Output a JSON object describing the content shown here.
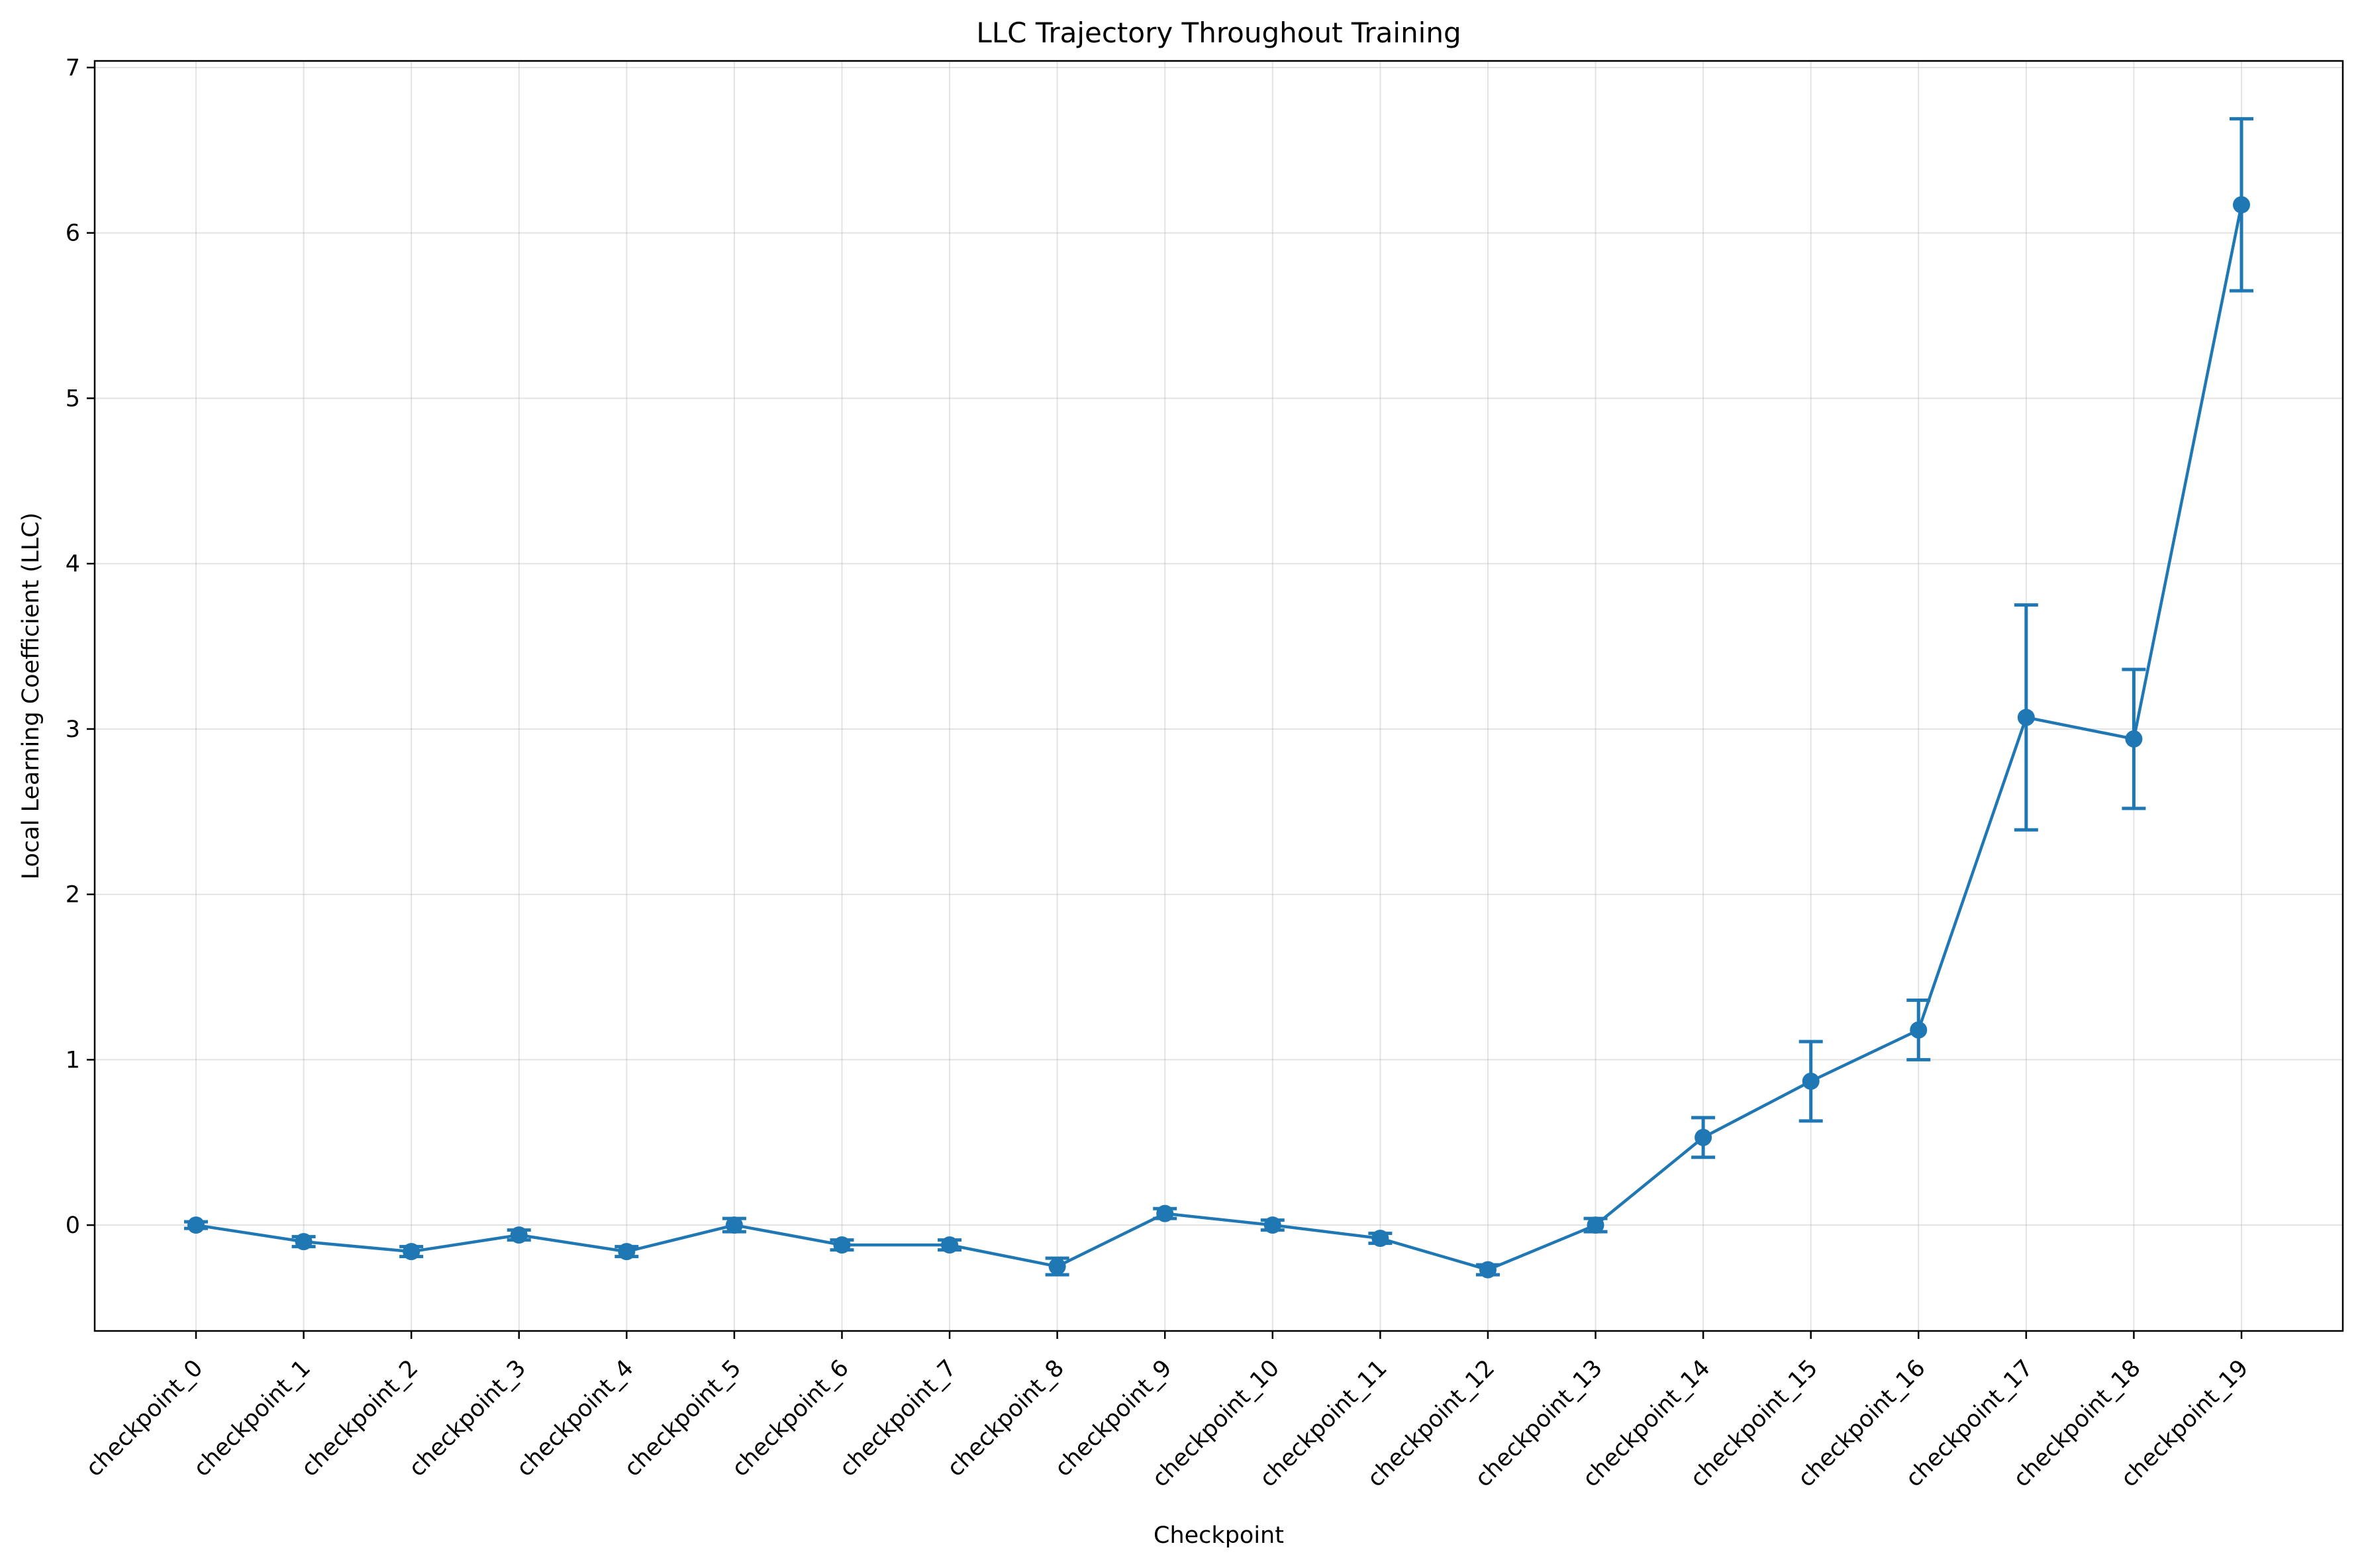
{
  "chart_data": {
    "type": "line",
    "title": "LLC Trajectory Throughout Training",
    "xlabel": "Checkpoint",
    "ylabel": "Local Learning Coefficient (LLC)",
    "categories": [
      "checkpoint_0",
      "checkpoint_1",
      "checkpoint_2",
      "checkpoint_3",
      "checkpoint_4",
      "checkpoint_5",
      "checkpoint_6",
      "checkpoint_7",
      "checkpoint_8",
      "checkpoint_9",
      "checkpoint_10",
      "checkpoint_11",
      "checkpoint_12",
      "checkpoint_13",
      "checkpoint_14",
      "checkpoint_15",
      "checkpoint_16",
      "checkpoint_17",
      "checkpoint_18",
      "checkpoint_19"
    ],
    "series": [
      {
        "values": [
          0.0,
          -0.1,
          -0.16,
          -0.06,
          -0.16,
          0.0,
          -0.12,
          -0.12,
          -0.25,
          0.07,
          0.0,
          -0.08,
          -0.27,
          0.0,
          0.53,
          0.87,
          1.18,
          3.07,
          2.94,
          6.17
        ],
        "error": [
          0.02,
          0.03,
          0.03,
          0.03,
          0.03,
          0.04,
          0.03,
          0.03,
          0.05,
          0.03,
          0.03,
          0.03,
          0.03,
          0.04,
          0.12,
          0.24,
          0.18,
          0.68,
          0.42,
          0.52
        ],
        "color": "#1f77b4"
      }
    ],
    "yticks": [
      0,
      1,
      2,
      3,
      4,
      5,
      6,
      7
    ],
    "ylim": [
      -0.64,
      7.04
    ],
    "grid": true
  }
}
